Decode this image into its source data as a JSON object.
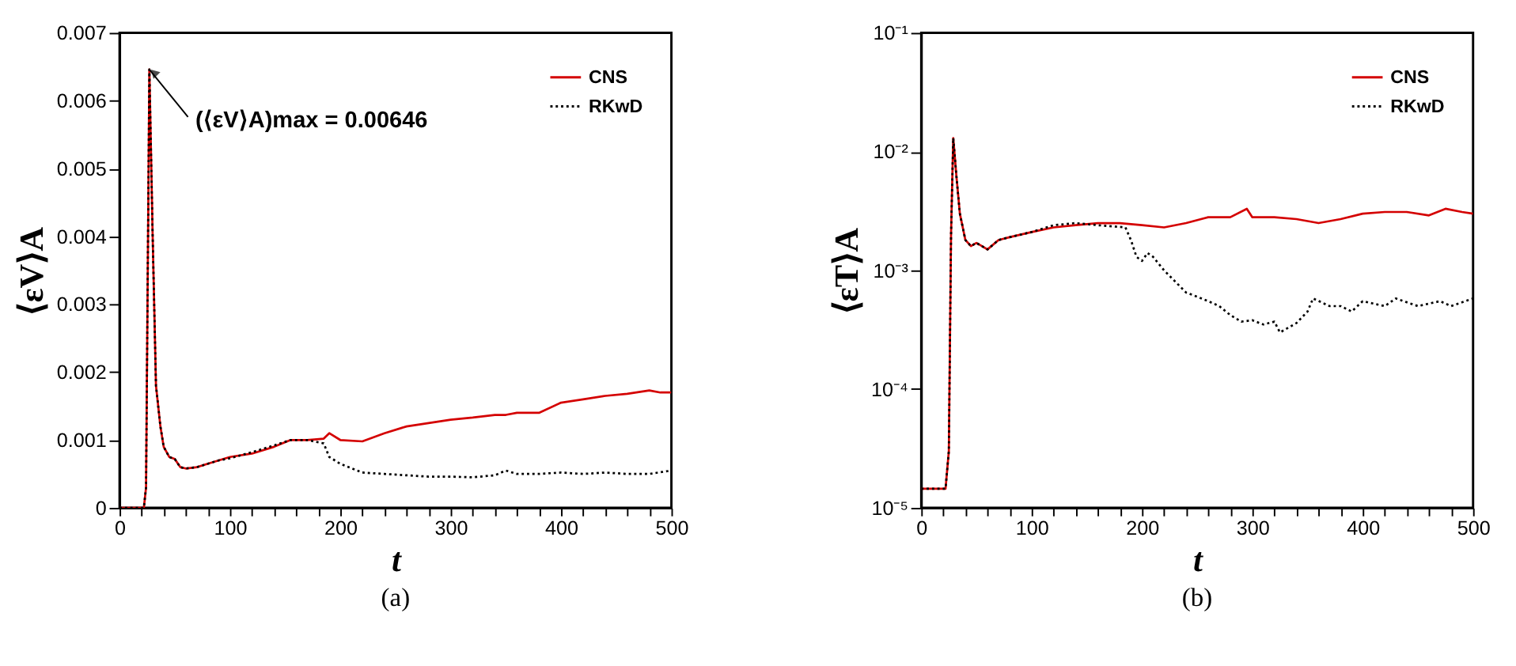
{
  "chart_data": [
    {
      "type": "line",
      "title": "(a)",
      "xlabel": "t",
      "ylabel": "⟨εV⟩A",
      "xlim": [
        0,
        500
      ],
      "ylim": [
        0,
        0.007
      ],
      "xticks": [
        0,
        {
          "value": 20,
          "label": null
        },
        {
          "value": 40,
          "label": null
        },
        {
          "value": 60,
          "label": null
        },
        {
          "value": 80,
          "label": null
        },
        100,
        {
          "value": 120,
          "label": null
        },
        {
          "value": 140,
          "label": null
        },
        {
          "value": 160,
          "label": null
        },
        {
          "value": 180,
          "label": null
        },
        200,
        {
          "value": 220,
          "label": null
        },
        {
          "value": 240,
          "label": null
        },
        {
          "value": 260,
          "label": null
        },
        {
          "value": 280,
          "label": null
        },
        300,
        {
          "value": 320,
          "label": null
        },
        {
          "value": 340,
          "label": null
        },
        {
          "value": 360,
          "label": null
        },
        {
          "value": 380,
          "label": null
        },
        400,
        {
          "value": 420,
          "label": null
        },
        {
          "value": 440,
          "label": null
        },
        {
          "value": 460,
          "label": null
        },
        {
          "value": 480,
          "label": null
        },
        500
      ],
      "yticks": [
        0,
        0.001,
        0.002,
        0.003,
        0.004,
        0.005,
        0.006,
        0.007
      ],
      "grid": false,
      "legend": "top right",
      "annotations": [
        {
          "text": "(⟨εV⟩A)max = 0.00646",
          "x": 27,
          "y": 0.00646
        }
      ],
      "series": [
        {
          "name": "CNS",
          "color": "#d40000",
          "line_style": "solid",
          "x": [
            0,
            22,
            24,
            27,
            30,
            33,
            37,
            40,
            45,
            50,
            55,
            60,
            70,
            80,
            90,
            100,
            120,
            140,
            155,
            170,
            185,
            190,
            200,
            220,
            240,
            260,
            280,
            300,
            320,
            340,
            350,
            360,
            380,
            400,
            420,
            440,
            460,
            480,
            490,
            500
          ],
          "values": [
            0,
            0,
            0.0003,
            0.00646,
            0.004,
            0.0018,
            0.0012,
            0.0009,
            0.00075,
            0.00072,
            0.0006,
            0.00058,
            0.0006,
            0.00065,
            0.0007,
            0.00075,
            0.0008,
            0.0009,
            0.001,
            0.001,
            0.00102,
            0.0011,
            0.001,
            0.00098,
            0.0011,
            0.0012,
            0.00125,
            0.0013,
            0.00133,
            0.00137,
            0.00137,
            0.0014,
            0.0014,
            0.00155,
            0.0016,
            0.00165,
            0.00168,
            0.00173,
            0.0017,
            0.0017
          ]
        },
        {
          "name": "RKwD",
          "color": "#000000",
          "line_style": "dotted",
          "x": [
            0,
            22,
            24,
            27,
            30,
            33,
            37,
            40,
            45,
            50,
            55,
            60,
            70,
            80,
            90,
            100,
            120,
            140,
            155,
            170,
            185,
            190,
            200,
            220,
            240,
            260,
            280,
            300,
            320,
            340,
            350,
            360,
            380,
            400,
            420,
            440,
            460,
            480,
            500
          ],
          "values": [
            0,
            0,
            0.0003,
            0.00646,
            0.004,
            0.0018,
            0.0012,
            0.0009,
            0.00075,
            0.00072,
            0.0006,
            0.00058,
            0.0006,
            0.00065,
            0.0007,
            0.00073,
            0.00082,
            0.00092,
            0.001,
            0.001,
            0.00095,
            0.00075,
            0.00065,
            0.00052,
            0.0005,
            0.00048,
            0.00046,
            0.00046,
            0.00045,
            0.00048,
            0.00055,
            0.0005,
            0.0005,
            0.00052,
            0.0005,
            0.00052,
            0.0005,
            0.0005,
            0.00055
          ]
        }
      ]
    },
    {
      "type": "line",
      "title": "(b)",
      "xlabel": "t",
      "ylabel": "⟨εT⟩A",
      "log": "y",
      "xlim": [
        0,
        500
      ],
      "ylim": [
        1e-05,
        0.1
      ],
      "xticks": [
        0,
        {
          "value": 20,
          "label": null
        },
        {
          "value": 40,
          "label": null
        },
        {
          "value": 60,
          "label": null
        },
        {
          "value": 80,
          "label": null
        },
        100,
        {
          "value": 120,
          "label": null
        },
        {
          "value": 140,
          "label": null
        },
        {
          "value": 160,
          "label": null
        },
        {
          "value": 180,
          "label": null
        },
        200,
        {
          "value": 220,
          "label": null
        },
        {
          "value": 240,
          "label": null
        },
        {
          "value": 260,
          "label": null
        },
        {
          "value": 280,
          "label": null
        },
        300,
        {
          "value": 320,
          "label": null
        },
        {
          "value": 340,
          "label": null
        },
        {
          "value": 360,
          "label": null
        },
        {
          "value": 380,
          "label": null
        },
        400,
        {
          "value": 420,
          "label": null
        },
        {
          "value": 440,
          "label": null
        },
        {
          "value": 460,
          "label": null
        },
        {
          "value": 480,
          "label": null
        },
        500
      ],
      "yticks": [
        {
          "value": 1e-05,
          "label": "10⁻⁵"
        },
        {
          "value": 0.0001,
          "label": "10⁻⁴"
        },
        {
          "value": 0.001,
          "label": "10⁻³"
        },
        {
          "value": 0.01,
          "label": "10⁻²"
        },
        {
          "value": 0.1,
          "label": "10⁻¹"
        }
      ],
      "grid": false,
      "legend": "top right",
      "series": [
        {
          "name": "CNS",
          "color": "#d40000",
          "line_style": "solid",
          "x": [
            0,
            22,
            25,
            27,
            29,
            32,
            35,
            40,
            45,
            50,
            55,
            60,
            70,
            80,
            100,
            120,
            140,
            160,
            180,
            200,
            220,
            240,
            260,
            280,
            295,
            300,
            320,
            340,
            360,
            380,
            400,
            420,
            440,
            460,
            475,
            490,
            500
          ],
          "values": [
            1.45e-05,
            1.45e-05,
            3e-05,
            0.002,
            0.013,
            0.006,
            0.003,
            0.0018,
            0.0016,
            0.0017,
            0.0016,
            0.0015,
            0.0018,
            0.0019,
            0.0021,
            0.0023,
            0.0024,
            0.0025,
            0.0025,
            0.0024,
            0.0023,
            0.0025,
            0.0028,
            0.0028,
            0.0033,
            0.0028,
            0.0028,
            0.0027,
            0.0025,
            0.0027,
            0.003,
            0.0031,
            0.0031,
            0.0029,
            0.0033,
            0.0031,
            0.003
          ]
        },
        {
          "name": "RKwD",
          "color": "#000000",
          "line_style": "dotted",
          "x": [
            0,
            22,
            25,
            27,
            29,
            32,
            35,
            40,
            45,
            50,
            55,
            60,
            70,
            80,
            100,
            120,
            140,
            160,
            185,
            190,
            195,
            200,
            205,
            210,
            220,
            240,
            250,
            260,
            270,
            280,
            290,
            300,
            310,
            320,
            325,
            340,
            350,
            355,
            370,
            380,
            390,
            400,
            420,
            430,
            450,
            470,
            480,
            500
          ],
          "values": [
            1.45e-05,
            1.45e-05,
            3e-05,
            0.002,
            0.013,
            0.006,
            0.003,
            0.0018,
            0.0016,
            0.0017,
            0.0016,
            0.0015,
            0.0018,
            0.0019,
            0.0021,
            0.0024,
            0.0025,
            0.0024,
            0.0023,
            0.0018,
            0.0013,
            0.0012,
            0.0014,
            0.0013,
            0.001,
            0.00065,
            0.0006,
            0.00055,
            0.0005,
            0.00042,
            0.00037,
            0.00038,
            0.00035,
            0.00037,
            0.0003,
            0.00036,
            0.00045,
            0.00058,
            0.0005,
            0.0005,
            0.00045,
            0.00055,
            0.0005,
            0.00058,
            0.0005,
            0.00055,
            0.0005,
            0.00058
          ]
        }
      ]
    }
  ]
}
